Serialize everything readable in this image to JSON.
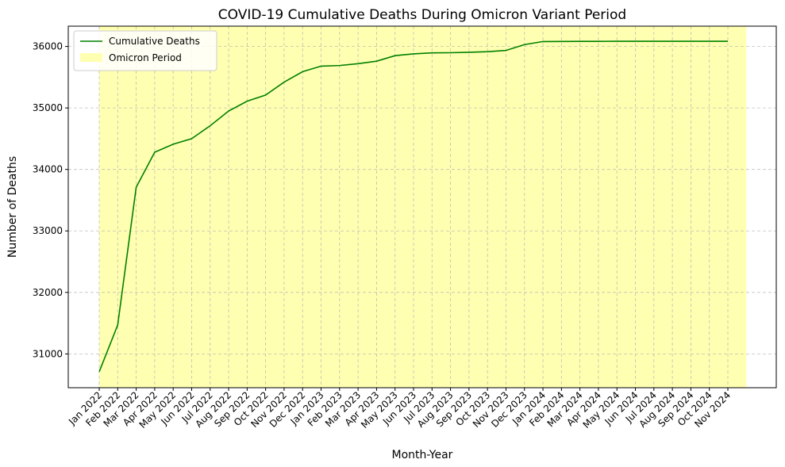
{
  "chart_data": {
    "type": "line",
    "title": "COVID-19 Cumulative Deaths During Omicron Variant Period",
    "xlabel": "Month-Year",
    "ylabel": "Number of Deaths",
    "categories": [
      "Jan 2022",
      "Feb 2022",
      "Mar 2022",
      "Apr 2022",
      "May 2022",
      "Jun 2022",
      "Jul 2022",
      "Aug 2022",
      "Sep 2022",
      "Oct 2022",
      "Nov 2022",
      "Dec 2022",
      "Jan 2023",
      "Feb 2023",
      "Mar 2023",
      "Apr 2023",
      "May 2023",
      "Jun 2023",
      "Jul 2023",
      "Aug 2023",
      "Sep 2023",
      "Oct 2023",
      "Nov 2023",
      "Dec 2023",
      "Jan 2024",
      "Feb 2024",
      "Mar 2024",
      "Apr 2024",
      "May 2024",
      "Jun 2024",
      "Jul 2024",
      "Aug 2024",
      "Sep 2024",
      "Oct 2024",
      "Nov 2024"
    ],
    "series": [
      {
        "name": "Cumulative Deaths",
        "color": "#008000",
        "values": [
          30710,
          31470,
          33710,
          34280,
          34410,
          34500,
          34710,
          34950,
          35110,
          35210,
          35420,
          35590,
          35680,
          35690,
          35720,
          35760,
          35850,
          35880,
          35895,
          35898,
          35905,
          35915,
          35935,
          36030,
          36080,
          36081,
          36082,
          36083,
          36084,
          36084,
          36084,
          36084,
          36084,
          36084,
          36084
        ]
      }
    ],
    "highlight": {
      "name": "Omicron Period",
      "from": "Jan 2022",
      "to": "Nov 2024",
      "color": "#ffffb2"
    },
    "ylim": [
      30450,
      36330
    ],
    "yticks": [
      31000,
      32000,
      33000,
      34000,
      35000,
      36000
    ],
    "grid": true,
    "legend_position": "top-left"
  }
}
